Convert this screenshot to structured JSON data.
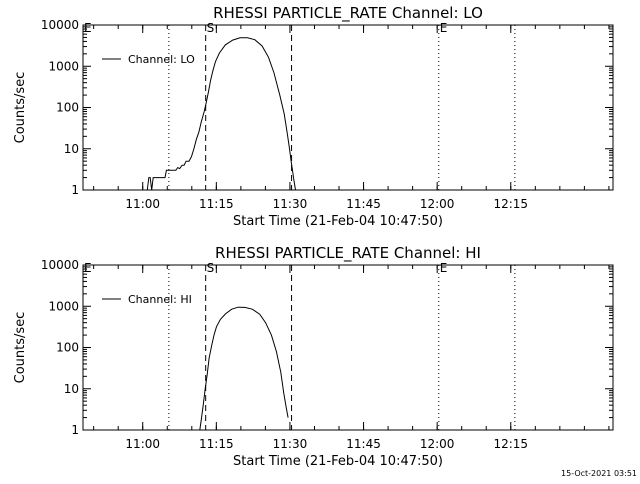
{
  "chart_data": [
    {
      "type": "line",
      "title": "RHESSI PARTICLE_RATE Channel: LO",
      "xlabel": "Start Time (21-Feb-04 10:47:50)",
      "ylabel": "Counts/sec",
      "yscale": "log",
      "ylim": [
        1,
        10000
      ],
      "xlim_minutes": [
        0,
        108
      ],
      "yticks": [
        "1",
        "10",
        "100",
        "1000",
        "10000"
      ],
      "xticks": [
        {
          "label": "11:00",
          "min": 12.17
        },
        {
          "label": "11:15",
          "min": 27.17
        },
        {
          "label": "11:30",
          "min": 42.17
        },
        {
          "label": "11:45",
          "min": 57.17
        },
        {
          "label": "12:00",
          "min": 72.17
        },
        {
          "label": "12:15",
          "min": 87.17
        }
      ],
      "legend": "Channel: LO",
      "legend_position": "top-left",
      "markers": [
        {
          "label": "E",
          "min": 0,
          "style": "dotted"
        },
        {
          "label": "",
          "min": 17.5,
          "style": "dotted"
        },
        {
          "label": "S",
          "min": 25.0,
          "style": "dashed"
        },
        {
          "label": "",
          "min": 42.5,
          "style": "dashed"
        },
        {
          "label": "E",
          "min": 72.5,
          "style": "dotted"
        },
        {
          "label": "",
          "min": 88.0,
          "style": "dotted"
        }
      ],
      "series": [
        {
          "name": "Channel: LO",
          "x": [
            13.1,
            13.4,
            13.7,
            14.0,
            14.3,
            14.6,
            16.7,
            17.0,
            18.9,
            19.3,
            19.7,
            20.2,
            20.6,
            21.0,
            21.6,
            22.1,
            22.6,
            23.1,
            23.6,
            24.1,
            24.7,
            25.1,
            25.6,
            26.0,
            26.5,
            27.0,
            27.8,
            29.0,
            30.5,
            32.0,
            33.5,
            35.0,
            36.5,
            37.8,
            38.9,
            40.1,
            41.0,
            41.6,
            42.1,
            42.4,
            42.7,
            42.9,
            43.3
          ],
          "y": [
            1,
            2,
            2,
            1,
            2,
            2,
            2,
            3,
            3,
            3.5,
            3.3,
            4,
            4,
            5,
            5,
            6.5,
            10,
            17,
            25,
            45,
            80,
            130,
            250,
            460,
            800,
            1300,
            2100,
            3300,
            4300,
            4900,
            4900,
            4400,
            3100,
            1650,
            700,
            200,
            70,
            25,
            9.7,
            5,
            3,
            2,
            1
          ]
        }
      ]
    },
    {
      "type": "line",
      "title": "RHESSI PARTICLE_RATE Channel: HI",
      "xlabel": "Start Time (21-Feb-04 10:47:50)",
      "ylabel": "Counts/sec",
      "yscale": "log",
      "ylim": [
        1,
        10000
      ],
      "xlim_minutes": [
        0,
        108
      ],
      "yticks": [
        "1",
        "10",
        "100",
        "1000",
        "10000"
      ],
      "xticks": [
        {
          "label": "11:00",
          "min": 12.17
        },
        {
          "label": "11:15",
          "min": 27.17
        },
        {
          "label": "11:30",
          "min": 42.17
        },
        {
          "label": "11:45",
          "min": 57.17
        },
        {
          "label": "12:00",
          "min": 72.17
        },
        {
          "label": "12:15",
          "min": 87.17
        }
      ],
      "legend": "Channel: HI",
      "legend_position": "top-left",
      "markers": [
        {
          "label": "E",
          "min": 0,
          "style": "dotted"
        },
        {
          "label": "",
          "min": 17.5,
          "style": "dotted"
        },
        {
          "label": "S",
          "min": 25.0,
          "style": "dashed"
        },
        {
          "label": "",
          "min": 42.5,
          "style": "dashed"
        },
        {
          "label": "E",
          "min": 72.5,
          "style": "dotted"
        },
        {
          "label": "",
          "min": 88.0,
          "style": "dotted"
        }
      ],
      "series": [
        {
          "name": "Channel: HI",
          "x": [
            23.8,
            24.1,
            24.5,
            24.9,
            25.3,
            25.7,
            26.2,
            26.7,
            27.2,
            28.0,
            29.0,
            30.3,
            31.6,
            33.0,
            34.5,
            36.0,
            37.2,
            38.4,
            39.4,
            40.3,
            40.9,
            41.4,
            41.8
          ],
          "y": [
            1,
            1.8,
            4,
            10,
            22,
            55,
            110,
            200,
            320,
            480,
            650,
            850,
            950,
            940,
            850,
            640,
            400,
            200,
            80,
            25,
            8,
            3.5,
            2
          ]
        }
      ]
    }
  ],
  "footer": {
    "timestamp": "15-Oct-2021 03:51"
  }
}
